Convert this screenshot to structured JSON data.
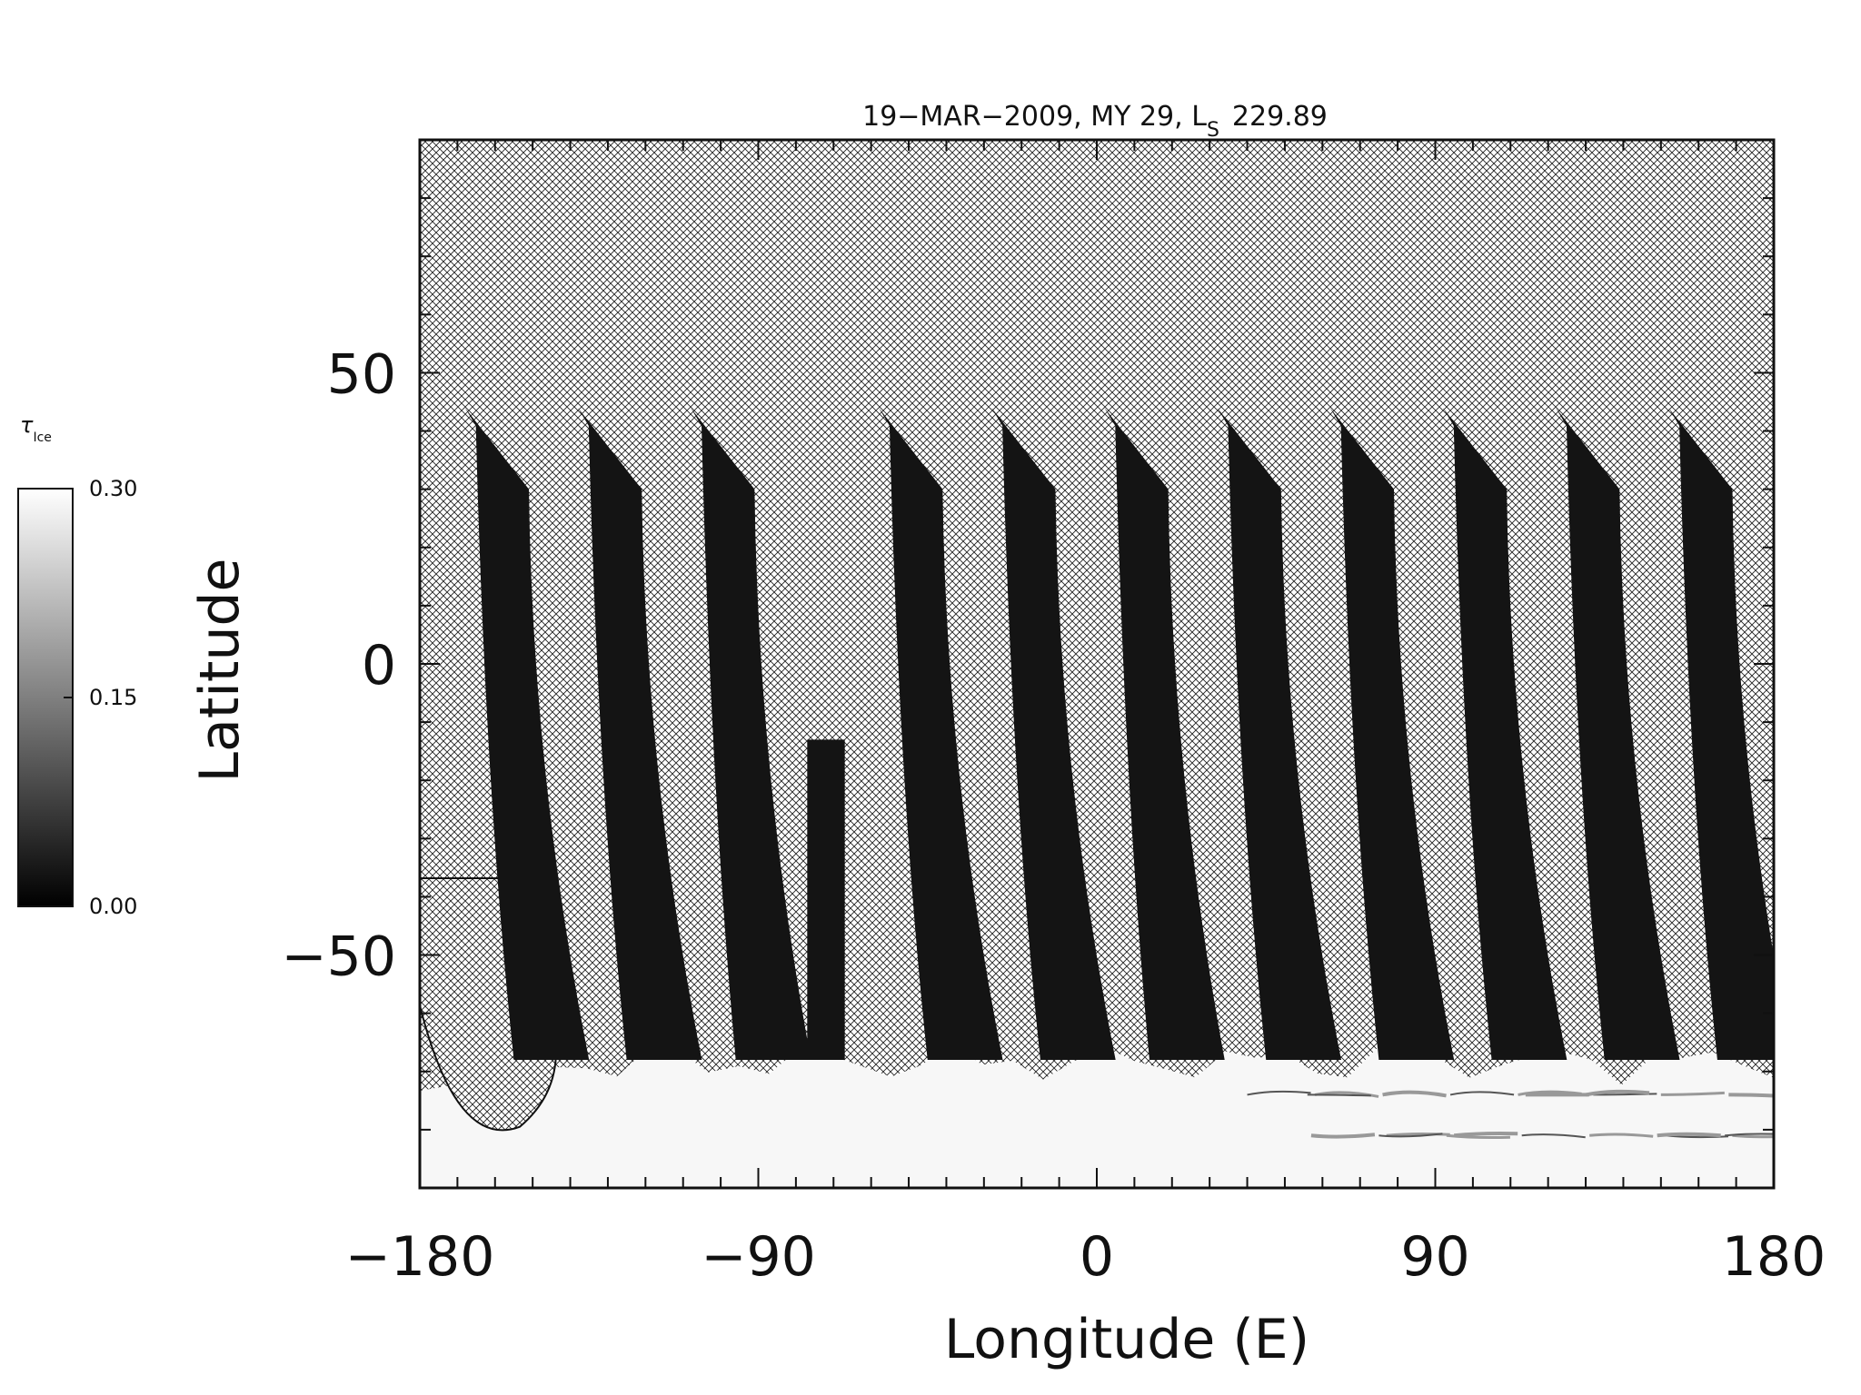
{
  "chart_data": {
    "type": "heatmap",
    "title": "19−MAR−2009, MY 29,  L",
    "title_subscript": "S",
    "title_value": "229.89",
    "xlabel": "Longitude (E)",
    "ylabel": "Latitude",
    "xlim": [
      -180,
      180
    ],
    "ylim": [
      -90,
      90
    ],
    "xticks": [
      {
        "value": -180,
        "label": "−180"
      },
      {
        "value": -90,
        "label": "−90"
      },
      {
        "value": 0,
        "label": "0"
      },
      {
        "value": 90,
        "label": "90"
      },
      {
        "value": 180,
        "label": "180"
      }
    ],
    "yticks": [
      {
        "value": 50,
        "label": "50"
      },
      {
        "value": 0,
        "label": "0"
      },
      {
        "value": -50,
        "label": "−50"
      }
    ],
    "colorbar": {
      "symbol": "τ",
      "symbol_subscript": "Ice",
      "min": 0.0,
      "max": 0.3,
      "ticks": [
        {
          "value": 0.0,
          "label": "0.00"
        },
        {
          "value": 0.15,
          "label": "0.15"
        },
        {
          "value": 0.3,
          "label": "0.30"
        }
      ],
      "colormap": "grayscale"
    },
    "missing_data_pattern": "crosshatch",
    "swaths": [
      {
        "lon_top": -160,
        "lon_bottom": -147,
        "lat_top": 44,
        "lat_bottom": -68
      },
      {
        "lon_top": -130,
        "lon_bottom": -117,
        "lat_top": 44,
        "lat_bottom": -68
      },
      {
        "lon_top": -100,
        "lon_bottom": -88,
        "lat_top": 44,
        "lat_bottom": -68
      },
      {
        "lon_top": -72,
        "lon_bottom": -72,
        "lat_top": -13,
        "lat_bottom": -68,
        "stub": true
      },
      {
        "lon_top": -50,
        "lon_bottom": -37,
        "lat_top": 44,
        "lat_bottom": -68
      },
      {
        "lon_top": -20,
        "lon_bottom": -7,
        "lat_top": 44,
        "lat_bottom": -68
      },
      {
        "lon_top": 10,
        "lon_bottom": 22,
        "lat_top": 44,
        "lat_bottom": -68
      },
      {
        "lon_top": 40,
        "lon_bottom": 53,
        "lat_top": 44,
        "lat_bottom": -68
      },
      {
        "lon_top": 70,
        "lon_bottom": 83,
        "lat_top": 44,
        "lat_bottom": -68
      },
      {
        "lon_top": 100,
        "lon_bottom": 113,
        "lat_top": 44,
        "lat_bottom": -68
      },
      {
        "lon_top": 130,
        "lon_bottom": 143,
        "lat_top": 44,
        "lat_bottom": -68
      },
      {
        "lon_top": 160,
        "lon_bottom": 173,
        "lat_top": 44,
        "lat_bottom": -68
      }
    ],
    "south_cap": {
      "lat_edge": -68,
      "value": 0.3
    }
  }
}
